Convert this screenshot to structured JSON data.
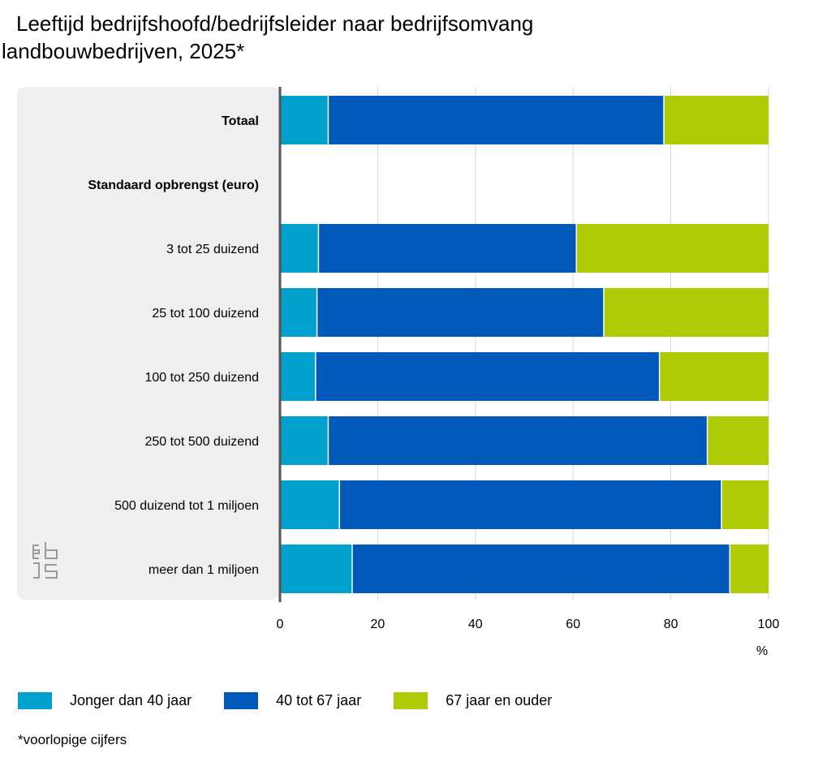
{
  "title_line1": "Leeftijd bedrijfshoofd/bedrijfsleider naar bedrijfsomvang",
  "title_line2": "landbouwbedrijven, 2025*",
  "footnote": "*voorlopige cijfers",
  "colors": {
    "young": "#00a1cd",
    "mid": "#0058b8",
    "old": "#afcb05",
    "panel": "#efefef",
    "grid": "#d6d6d6"
  },
  "logo_icon": "cbs-logo-icon",
  "chart_data": {
    "type": "bar",
    "orientation": "horizontal",
    "stacked": true,
    "title": "Leeftijd bedrijfshoofd/bedrijfsleider naar bedrijfsomvang landbouwbedrijven, 2025*",
    "categories": [
      "Totaal",
      "Standaard opbrengst (euro)",
      "3 tot 25 duizend",
      "25 tot 100 duizend",
      "100 tot 250 duizend",
      "250 tot 500 duizend",
      "500 duizend tot 1 miljoen",
      "meer dan 1 miljoen"
    ],
    "bold_categories": [
      "Totaal",
      "Standaard opbrengst (euro)"
    ],
    "series": [
      {
        "name": "Jonger dan 40 jaar",
        "color": "#00a1cd",
        "values": [
          10,
          null,
          8,
          7.7,
          7.4,
          10,
          12.3,
          14.9
        ]
      },
      {
        "name": "40 tot 67 jaar",
        "color": "#0058b8",
        "values": [
          68.7,
          null,
          52.8,
          58.7,
          70.4,
          77.6,
          78.2,
          77.3
        ]
      },
      {
        "name": "67 jaar en ouder",
        "color": "#afcb05",
        "values": [
          21.3,
          null,
          39.2,
          33.6,
          22.2,
          12.4,
          9.5,
          7.8
        ]
      }
    ],
    "xlim": [
      0,
      100
    ],
    "xticks": [
      0,
      20,
      40,
      60,
      80,
      100
    ],
    "xticklabels": [
      "0",
      "20",
      "40",
      "60",
      "80",
      "100"
    ],
    "xlabel": "%",
    "grid": true,
    "legend": "bottom"
  }
}
